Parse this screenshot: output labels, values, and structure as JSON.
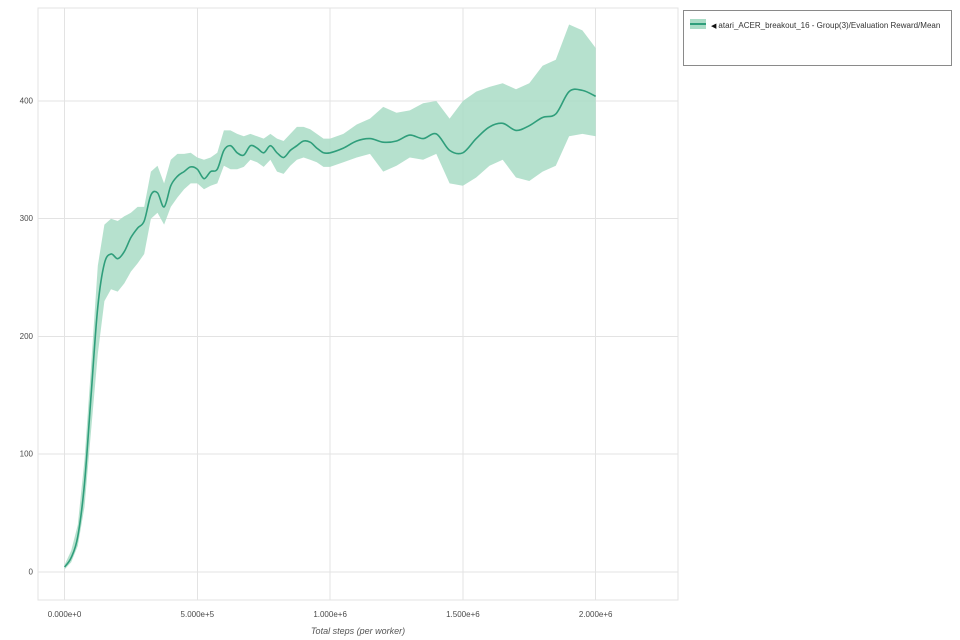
{
  "legend": {
    "arrow": "◀",
    "label": "atari_ACER_breakout_16 - Group(3)/Evaluation Reward/Mean"
  },
  "chart_data": {
    "type": "line",
    "title": "",
    "xlabel": "Total steps (per worker)",
    "ylabel": "",
    "xlim": [
      -100000,
      2310000
    ],
    "ylim": [
      -24,
      479
    ],
    "grid": true,
    "legend_position": "top-right-outside",
    "x_ticks": [
      {
        "v": 0,
        "label": "0.000e+0"
      },
      {
        "v": 500000,
        "label": "5.000e+5"
      },
      {
        "v": 1000000,
        "label": "1.000e+6"
      },
      {
        "v": 1500000,
        "label": "1.500e+6"
      },
      {
        "v": 2000000,
        "label": "2.000e+6"
      }
    ],
    "y_ticks": [
      {
        "v": 0,
        "label": "0"
      },
      {
        "v": 100,
        "label": "100"
      },
      {
        "v": 200,
        "label": "200"
      },
      {
        "v": 300,
        "label": "300"
      },
      {
        "v": 400,
        "label": "400"
      }
    ],
    "series": [
      {
        "name": "atari_ACER_breakout_16 - Group(3)/Evaluation Reward/Mean",
        "color": "#2f9e7b",
        "band_color": "#a9dcc6",
        "band_opacity": 0.85,
        "x": [
          0,
          25000,
          50000,
          75000,
          100000,
          125000,
          150000,
          175000,
          200000,
          225000,
          250000,
          275000,
          300000,
          325000,
          350000,
          375000,
          400000,
          425000,
          450000,
          475000,
          500000,
          525000,
          550000,
          575000,
          600000,
          625000,
          650000,
          675000,
          700000,
          725000,
          750000,
          775000,
          800000,
          825000,
          850000,
          875000,
          900000,
          925000,
          950000,
          975000,
          1000000,
          1050000,
          1100000,
          1150000,
          1200000,
          1250000,
          1300000,
          1350000,
          1400000,
          1450000,
          1500000,
          1550000,
          1600000,
          1650000,
          1700000,
          1750000,
          1800000,
          1850000,
          1900000,
          1950000,
          2000000
        ],
        "mean": [
          4,
          12,
          30,
          75,
          150,
          225,
          262,
          270,
          266,
          272,
          284,
          292,
          298,
          320,
          322,
          310,
          328,
          336,
          340,
          344,
          342,
          334,
          340,
          342,
          358,
          362,
          356,
          354,
          362,
          360,
          356,
          362,
          356,
          352,
          358,
          362,
          366,
          365,
          360,
          356,
          356,
          360,
          366,
          368,
          365,
          366,
          371,
          368,
          372,
          358,
          356,
          368,
          378,
          381,
          375,
          379,
          386,
          389,
          408,
          409,
          404
        ],
        "lower": [
          2,
          8,
          22,
          55,
          120,
          185,
          230,
          240,
          238,
          245,
          255,
          262,
          270,
          300,
          305,
          295,
          310,
          318,
          325,
          330,
          330,
          325,
          328,
          330,
          345,
          342,
          342,
          344,
          350,
          348,
          344,
          350,
          340,
          338,
          345,
          350,
          352,
          350,
          348,
          344,
          344,
          348,
          352,
          355,
          340,
          345,
          352,
          350,
          355,
          330,
          328,
          335,
          345,
          350,
          335,
          332,
          340,
          345,
          370,
          372,
          370
        ],
        "upper": [
          6,
          18,
          40,
          95,
          175,
          260,
          295,
          300,
          298,
          302,
          305,
          310,
          310,
          340,
          345,
          330,
          350,
          355,
          355,
          356,
          352,
          350,
          352,
          356,
          375,
          375,
          372,
          370,
          372,
          370,
          368,
          372,
          368,
          366,
          372,
          378,
          378,
          376,
          372,
          368,
          368,
          372,
          380,
          385,
          395,
          390,
          392,
          398,
          400,
          385,
          400,
          408,
          412,
          415,
          410,
          415,
          430,
          435,
          465,
          460,
          445
        ]
      }
    ]
  }
}
